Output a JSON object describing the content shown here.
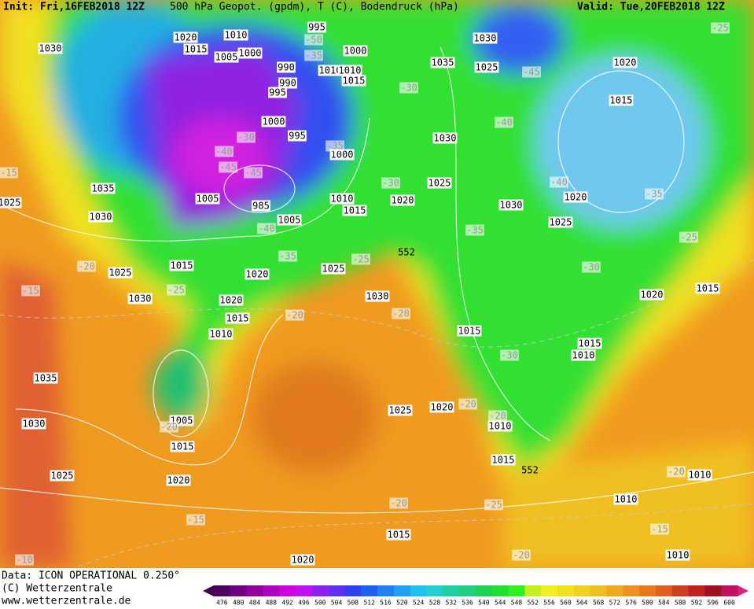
{
  "header": {
    "init": "Init: Fri,16FEB2018 12Z",
    "title": "500 hPa Geopot. (gpdm), T (C), Bodendruck (hPa)",
    "valid": "Valid: Tue,20FEB2018 12Z"
  },
  "footer": {
    "data": "Data: ICON OPERATIONAL 0.250°",
    "copyright": "(C) Wetterzentrale",
    "url": "www.wetterzentrale.de"
  },
  "colorbar": {
    "ticks": [
      476,
      480,
      484,
      488,
      492,
      496,
      500,
      504,
      508,
      512,
      516,
      520,
      524,
      528,
      532,
      536,
      540,
      544,
      548,
      552,
      556,
      560,
      564,
      568,
      572,
      576,
      580,
      584,
      588,
      592,
      596,
      600
    ],
    "colors": [
      "#500060",
      "#700080",
      "#9000a0",
      "#b000c0",
      "#d000e0",
      "#c010f0",
      "#9020f0",
      "#6030f0",
      "#3040f0",
      "#2060f0",
      "#2080f0",
      "#20a0f0",
      "#20c0f0",
      "#20d0d0",
      "#20d0a0",
      "#20d080",
      "#20d050",
      "#20e030",
      "#30f020",
      "#c0f020",
      "#f0f020",
      "#f0e020",
      "#f0d020",
      "#f0c020",
      "#f0a820",
      "#f09020",
      "#e87820",
      "#e06020",
      "#d04020",
      "#c02020",
      "#a01020",
      "#c01060"
    ],
    "under_color": "#400050",
    "over_color": "#e02080"
  },
  "map": {
    "pressure_labels": [
      1030,
      1020,
      1010,
      995,
      1015,
      1005,
      1000,
      1000,
      990,
      1010,
      1010,
      990,
      1015,
      995,
      1000,
      995,
      1000,
      1030,
      1035,
      1025,
      1020,
      1015,
      1030,
      1025,
      1020,
      1010,
      1015,
      1005,
      985,
      1005,
      1035,
      1030,
      1025,
      1030,
      1025,
      1020,
      1015,
      1025,
      1020,
      1025,
      1030,
      1020,
      1015,
      1010,
      1030,
      1015,
      1015,
      1010,
      1020,
      1015,
      1035,
      1030,
      1025,
      1020,
      1010,
      1005,
      1015,
      1020,
      1025,
      1015,
      1010,
      1010,
      1015,
      1020,
      1010
    ],
    "temperature_labels": [
      -25,
      -50,
      -35,
      -30,
      -45,
      -40,
      -30,
      -40,
      -35,
      -45,
      -45,
      -15,
      -30,
      -40,
      -35,
      -40,
      -35,
      -25,
      -35,
      -25,
      -20,
      -30,
      -25,
      -15,
      -20,
      -20,
      -30,
      -20,
      -20,
      -20,
      -20,
      -25,
      -20,
      -15,
      -15,
      -20,
      -10
    ],
    "height_labels": [
      552,
      552
    ]
  }
}
